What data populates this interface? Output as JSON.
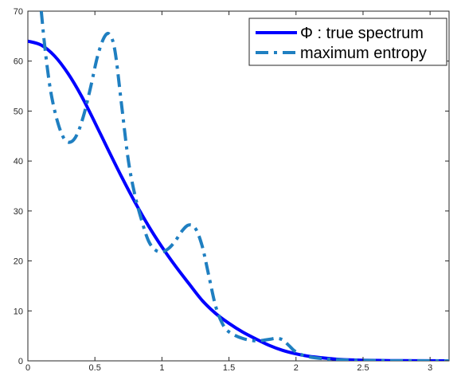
{
  "chart_data": {
    "type": "line",
    "title": "",
    "xlabel": "",
    "ylabel": "",
    "xlim": [
      0,
      3.1416
    ],
    "ylim": [
      0,
      70
    ],
    "grid": false,
    "legend_position": "top-right",
    "xticks": [
      0,
      0.5,
      1,
      1.5,
      2,
      2.5,
      3
    ],
    "xtick_labels": [
      "0",
      "0.5",
      "1",
      "1.5",
      "2",
      "2.5",
      "3"
    ],
    "yticks": [
      0,
      10,
      20,
      30,
      40,
      50,
      60,
      70
    ],
    "ytick_labels": [
      "0",
      "10",
      "20",
      "30",
      "40",
      "50",
      "60",
      "70"
    ],
    "series": [
      {
        "name": "Φ : true spectrum",
        "style": "solid",
        "color": "#0000ff",
        "x": [
          0,
          0.1,
          0.2,
          0.3,
          0.4,
          0.5,
          0.6,
          0.7,
          0.8,
          0.9,
          1.0,
          1.1,
          1.2,
          1.3,
          1.4,
          1.5,
          1.6,
          1.7,
          1.8,
          1.9,
          2.0,
          2.1,
          2.2,
          2.3,
          2.4,
          2.5,
          2.7,
          2.9,
          3.1416
        ],
        "y": [
          64.0,
          63.2,
          61.0,
          57.5,
          53.0,
          47.7,
          42.2,
          36.8,
          31.7,
          27.0,
          22.8,
          19.0,
          15.5,
          12.1,
          9.5,
          7.5,
          5.8,
          4.4,
          3.1,
          2.1,
          1.4,
          0.9,
          0.6,
          0.35,
          0.2,
          0.12,
          0.05,
          0.02,
          0.0
        ]
      },
      {
        "name": "maximum entropy",
        "style": "dash-dot",
        "color": "#1f7fc1",
        "x": [
          0.1,
          0.13,
          0.17,
          0.22,
          0.27,
          0.32,
          0.37,
          0.42,
          0.47,
          0.52,
          0.57,
          0.61,
          0.65,
          0.7,
          0.75,
          0.8,
          0.85,
          0.9,
          0.95,
          1.0,
          1.05,
          1.1,
          1.15,
          1.2,
          1.25,
          1.3,
          1.35,
          1.4,
          1.45,
          1.5,
          1.6,
          1.7,
          1.8,
          1.85,
          1.9,
          1.95,
          2.0,
          2.1,
          2.3,
          2.6,
          3.1416
        ],
        "y": [
          70.0,
          62.0,
          54.0,
          48.0,
          44.5,
          43.8,
          45.5,
          49.5,
          55.0,
          61.0,
          64.8,
          65.3,
          62.0,
          51.0,
          40.0,
          33.0,
          28.0,
          24.0,
          22.2,
          21.8,
          22.5,
          24.0,
          26.0,
          27.2,
          26.5,
          23.0,
          17.0,
          11.0,
          7.5,
          5.8,
          4.5,
          4.0,
          4.3,
          4.5,
          4.2,
          3.0,
          1.8,
          0.8,
          0.25,
          0.05,
          0.0
        ]
      }
    ]
  }
}
